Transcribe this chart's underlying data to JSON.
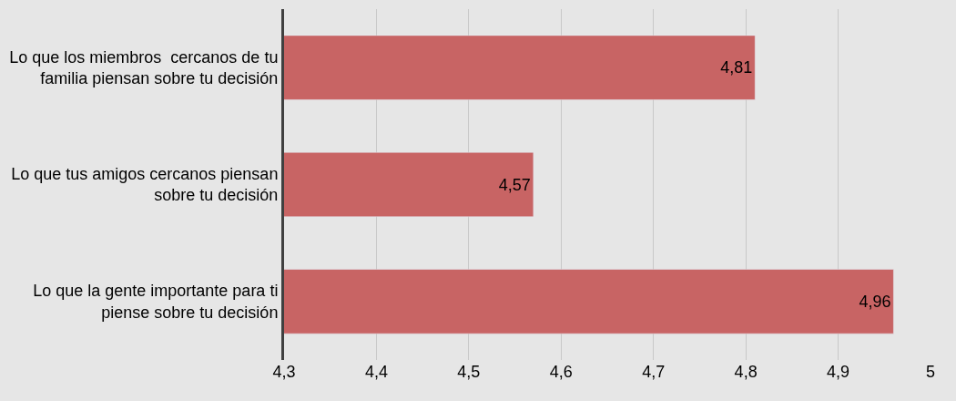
{
  "chart_data": {
    "type": "bar",
    "orientation": "horizontal",
    "categories": [
      "Lo que los miembros  cercanos de tu familia piensan sobre tu decisión",
      "Lo que tus amigos cercanos piensan sobre tu decisión",
      "Lo que la gente importante para ti piense sobre tu decisión"
    ],
    "values": [
      4.81,
      4.57,
      4.96
    ],
    "value_labels": [
      "4,81",
      "4,57",
      "4,96"
    ],
    "color": "#c86464",
    "xlim": [
      4.3,
      5
    ],
    "xticks": [
      {
        "value": 4.3,
        "label": "4,3"
      },
      {
        "value": 4.4,
        "label": "4,4"
      },
      {
        "value": 4.5,
        "label": "4,5"
      },
      {
        "value": 4.6,
        "label": "4,6"
      },
      {
        "value": 4.7,
        "label": "4,7"
      },
      {
        "value": 4.8,
        "label": "4,8"
      },
      {
        "value": 4.9,
        "label": "4,9"
      },
      {
        "value": 5,
        "label": "5"
      }
    ],
    "grid": "x"
  }
}
